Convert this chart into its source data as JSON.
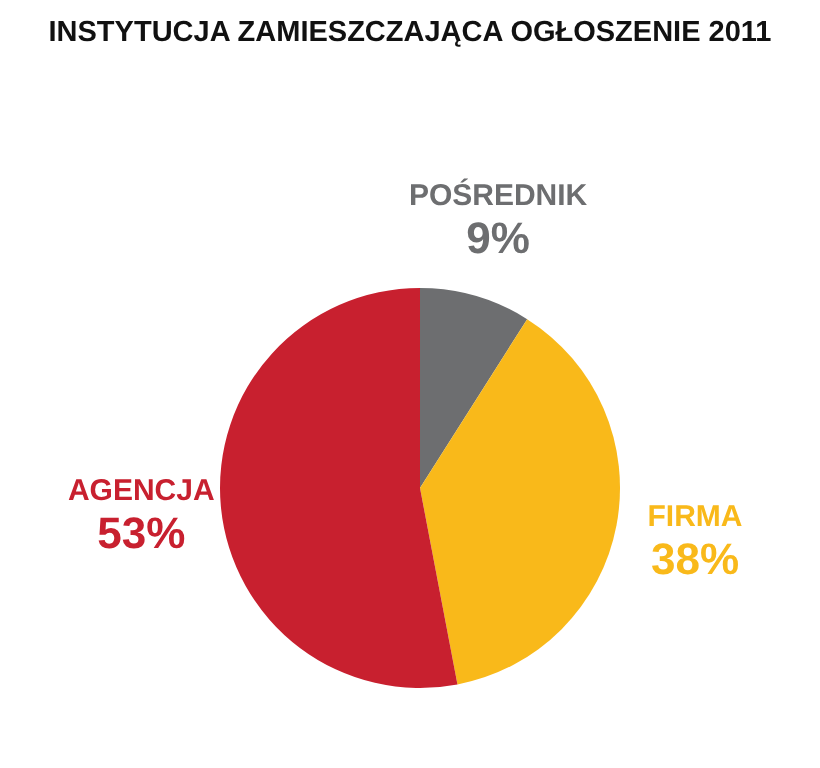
{
  "chart_data": {
    "type": "pie",
    "title": "INSTYTUCJA ZAMIESZCZAJĄCA OGŁOSZENIE 2011",
    "categories": [
      "POŚREDNIK",
      "FIRMA",
      "AGENCJA"
    ],
    "values": [
      9,
      38,
      53
    ],
    "colors": [
      "#6d6e70",
      "#f9b91a",
      "#c8202f"
    ],
    "value_labels": [
      "9%",
      "38%",
      "53%"
    ],
    "legend": false
  }
}
